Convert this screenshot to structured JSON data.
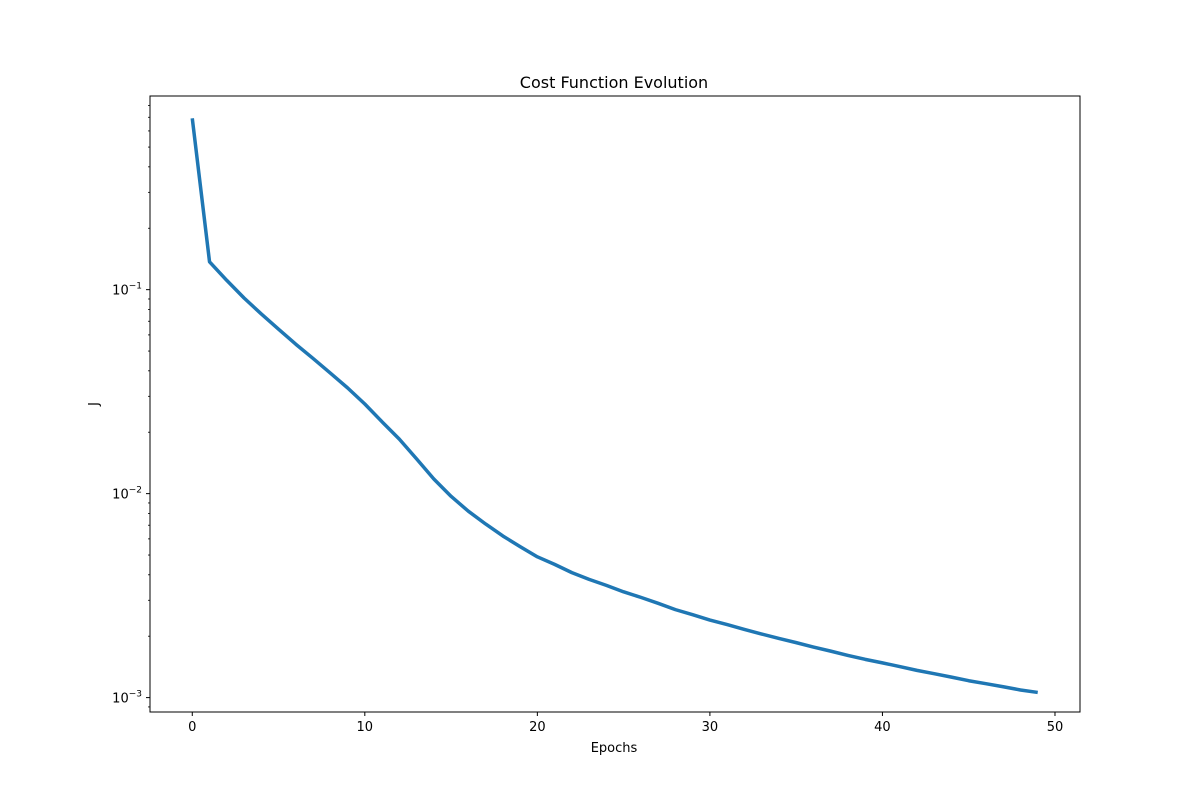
{
  "chart_data": {
    "type": "line",
    "title": "Cost Function Evolution",
    "xlabel": "Epochs",
    "ylabel": "J",
    "yscale": "log",
    "xlim": [
      -2.45,
      51.45
    ],
    "ylim": [
      0.00085,
      0.89
    ],
    "xticks": [
      0,
      10,
      20,
      30,
      40,
      50
    ],
    "xtick_labels": [
      "0",
      "10",
      "20",
      "30",
      "40",
      "50"
    ],
    "yticks": [
      0.001,
      0.01,
      0.1
    ],
    "ytick_labels": [
      {
        "base": "10",
        "exp": "−3"
      },
      {
        "base": "10",
        "exp": "−2"
      },
      {
        "base": "10",
        "exp": "−1"
      }
    ],
    "grid": false,
    "line_color": "#1f77b4",
    "series": [
      {
        "x": [
          0,
          1,
          2,
          3,
          4,
          5,
          6,
          7,
          8,
          9,
          10,
          11,
          12,
          13,
          14,
          15,
          16,
          17,
          18,
          19,
          20,
          21,
          22,
          23,
          24,
          25,
          26,
          27,
          28,
          29,
          30,
          31,
          32,
          33,
          34,
          35,
          36,
          37,
          38,
          39,
          40,
          41,
          42,
          43,
          44,
          45,
          46,
          47,
          48,
          49
        ],
        "values": [
          0.692,
          0.137,
          0.111,
          0.091,
          0.076,
          0.064,
          0.054,
          0.046,
          0.039,
          0.033,
          0.0275,
          0.0225,
          0.0185,
          0.0148,
          0.0118,
          0.0097,
          0.0082,
          0.0071,
          0.0062,
          0.0055,
          0.0049,
          0.0045,
          0.0041,
          0.0038,
          0.00355,
          0.0033,
          0.0031,
          0.0029,
          0.0027,
          0.00255,
          0.0024,
          0.00228,
          0.00216,
          0.00205,
          0.00195,
          0.00186,
          0.00177,
          0.00169,
          0.00161,
          0.00154,
          0.00148,
          0.00142,
          0.00136,
          0.00131,
          0.00126,
          0.00121,
          0.00117,
          0.00113,
          0.00109,
          0.00106
        ]
      }
    ]
  }
}
